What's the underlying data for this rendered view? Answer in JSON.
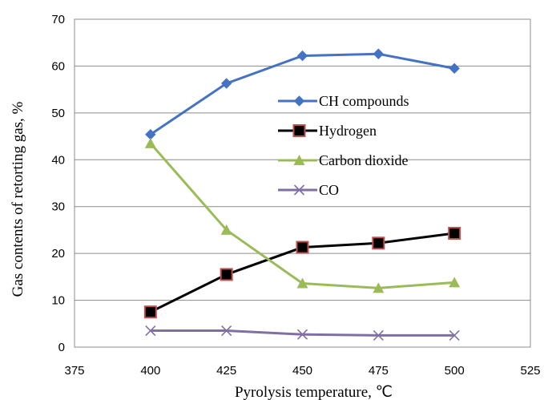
{
  "chart_data": {
    "type": "line",
    "title": "",
    "xlabel": "Pyrolysis temperature, ℃",
    "ylabel": "Gas contents of retorting gas,  %",
    "xlim": [
      375,
      525
    ],
    "ylim": [
      0,
      70
    ],
    "xticks": [
      375,
      400,
      425,
      450,
      475,
      500,
      525
    ],
    "yticks": [
      0,
      10,
      20,
      30,
      40,
      50,
      60,
      70
    ],
    "grid": "horizontal",
    "legend_position": "inside-right",
    "series": [
      {
        "name": "CH compounds",
        "color": "#4472c4",
        "marker": "diamond",
        "x": [
          400,
          425,
          450,
          475,
          500
        ],
        "y": [
          45.4,
          56.3,
          62.2,
          62.6,
          59.5
        ]
      },
      {
        "name": "Hydrogen",
        "color": "#000000",
        "marker": "square",
        "x": [
          400,
          425,
          450,
          475,
          500
        ],
        "y": [
          7.5,
          15.5,
          21.3,
          22.2,
          24.3
        ]
      },
      {
        "name": "Carbon dioxide",
        "color": "#9bbb59",
        "marker": "triangle",
        "x": [
          400,
          425,
          450,
          475,
          500
        ],
        "y": [
          43.5,
          25.0,
          13.6,
          12.6,
          13.8
        ]
      },
      {
        "name": "CO",
        "color": "#7f6fa5",
        "marker": "x",
        "x": [
          400,
          425,
          450,
          475,
          500
        ],
        "y": [
          3.5,
          3.5,
          2.7,
          2.5,
          2.5
        ]
      }
    ]
  }
}
